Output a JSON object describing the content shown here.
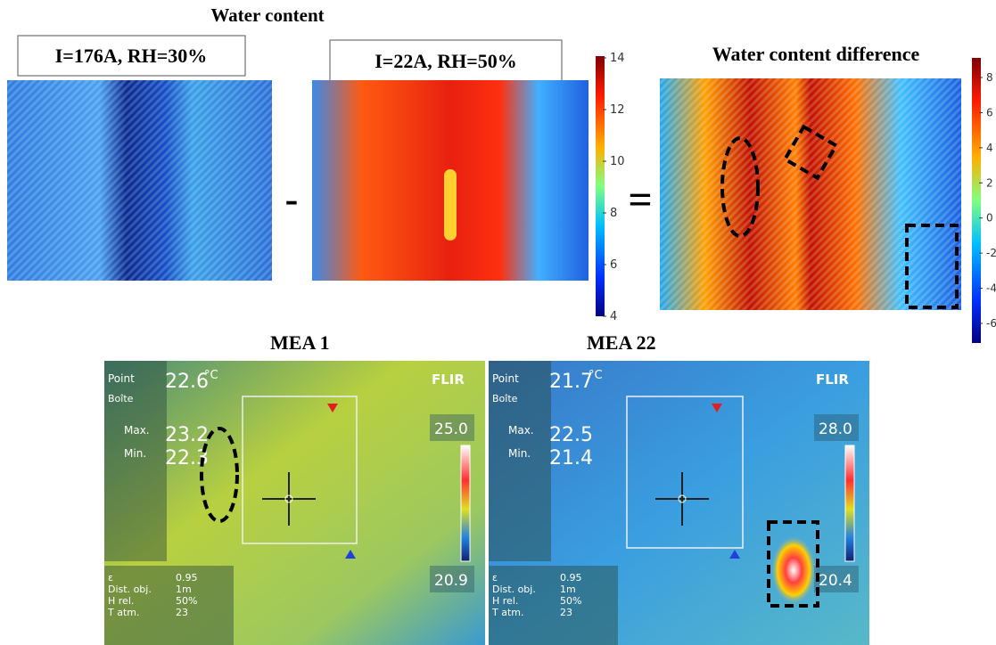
{
  "top": {
    "title": "Water content",
    "panels": [
      {
        "label": "I=176A, RH=30%"
      },
      {
        "label": "I=22A, RH=50%"
      }
    ],
    "operators": [
      "-",
      "="
    ],
    "colorbar_ticks": [
      14,
      12,
      10,
      8,
      6,
      4
    ],
    "difference_title": "Water content difference",
    "difference_colorbar_ticks": [
      8,
      6,
      4,
      2,
      0,
      -2,
      -4,
      -6
    ]
  },
  "bottom": [
    {
      "title": "MEA 1",
      "point_label": "Point",
      "point": "22.6",
      "unit": "°C",
      "box_label": "Boîte",
      "max_label": "Max.",
      "max": "23.2",
      "min_label": "Min.",
      "min": "22.3",
      "scale_max": "25.0",
      "scale_min": "20.9",
      "brand": "FLIR",
      "params": [
        [
          "ε",
          "0.95"
        ],
        [
          "Dist. obj.",
          "1m"
        ],
        [
          "H rel.",
          "50%"
        ],
        [
          "T atm.",
          "23"
        ]
      ]
    },
    {
      "title": "MEA 22",
      "point_label": "Point",
      "point": "21.7",
      "unit": "°C",
      "box_label": "Boîte",
      "max_label": "Max.",
      "max": "22.5",
      "min_label": "Min.",
      "min": "21.4",
      "scale_max": "28.0",
      "scale_min": "20.4",
      "brand": "FLIR",
      "params": [
        [
          "ε",
          "0.95"
        ],
        [
          "Dist. obj.",
          "1m"
        ],
        [
          "H rel.",
          "50%"
        ],
        [
          "T atm.",
          "23"
        ]
      ]
    }
  ]
}
